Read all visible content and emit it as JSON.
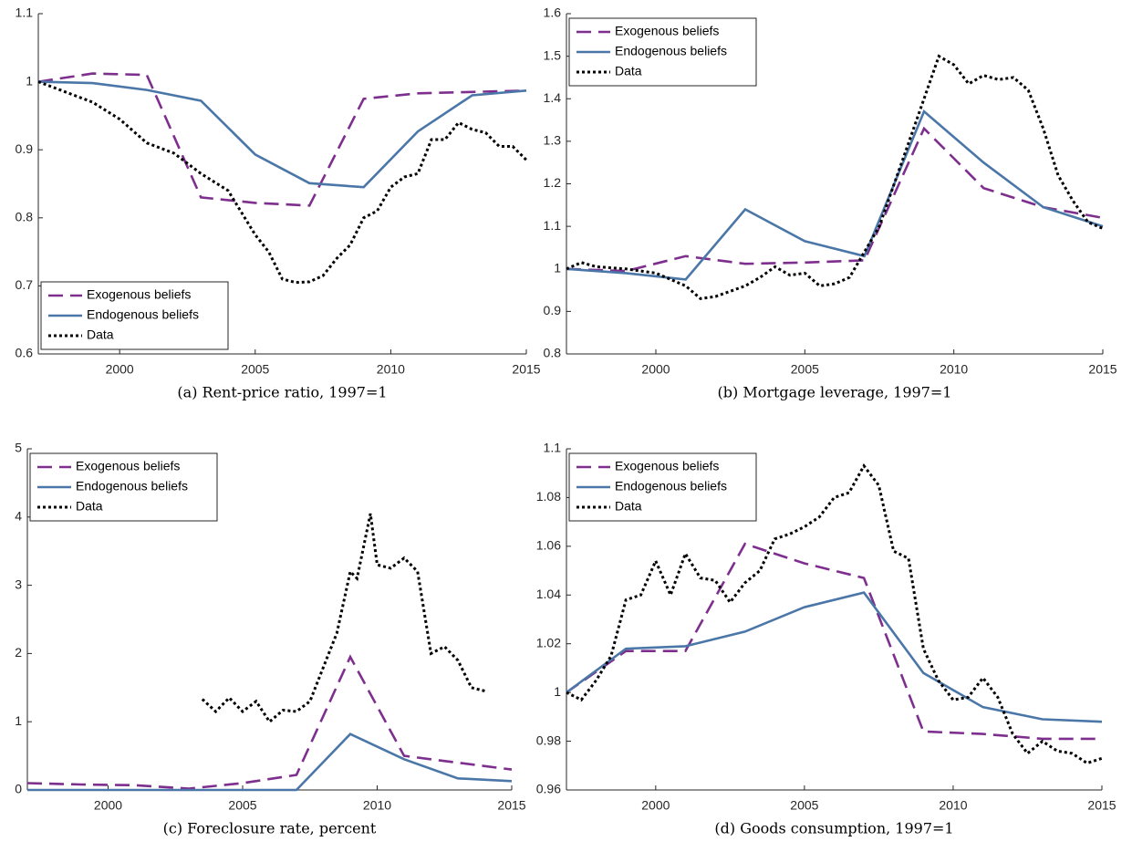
{
  "chart_data": [
    {
      "type": "line",
      "caption": "(a) Rent-price ratio, 1997=1",
      "xlim": [
        1997,
        2015
      ],
      "xticks": [
        2000,
        2005,
        2010,
        2015
      ],
      "ylim": [
        0.6,
        1.1
      ],
      "yticks": [
        0.6,
        0.7,
        0.8,
        0.9,
        1,
        1.1
      ],
      "legend": "lower left",
      "series": [
        {
          "name": "Exogenous beliefs",
          "color": "#7e2f8e",
          "style": "dashed",
          "x": [
            1997,
            1999,
            2001,
            2003,
            2005,
            2007,
            2009,
            2011,
            2013,
            2015
          ],
          "values": [
            1.0,
            1.012,
            1.01,
            0.83,
            0.822,
            0.818,
            0.975,
            0.983,
            0.985,
            0.987
          ]
        },
        {
          "name": "Endogenous beliefs",
          "color": "#4a76a8",
          "style": "solid",
          "x": [
            1997,
            1999,
            2001,
            2003,
            2005,
            2007,
            2009,
            2011,
            2013,
            2015
          ],
          "values": [
            1.0,
            0.998,
            0.988,
            0.972,
            0.893,
            0.851,
            0.845,
            0.927,
            0.98,
            0.987
          ]
        },
        {
          "name": "Data",
          "color": "#000000",
          "style": "dotted",
          "x": [
            1997,
            1998,
            1999,
            2000,
            2001,
            2002,
            2003,
            2004,
            2005,
            2005.5,
            2006,
            2006.5,
            2007,
            2007.5,
            2008,
            2008.5,
            2009,
            2009.5,
            2010,
            2010.5,
            2011,
            2011.5,
            2012,
            2012.5,
            2013,
            2013.5,
            2014,
            2014.5,
            2015
          ],
          "values": [
            1.0,
            0.985,
            0.97,
            0.945,
            0.91,
            0.895,
            0.865,
            0.84,
            0.775,
            0.75,
            0.71,
            0.705,
            0.706,
            0.715,
            0.74,
            0.76,
            0.8,
            0.81,
            0.845,
            0.86,
            0.865,
            0.915,
            0.915,
            0.94,
            0.93,
            0.925,
            0.905,
            0.905,
            0.885
          ]
        }
      ]
    },
    {
      "type": "line",
      "caption": "(b) Mortgage leverage, 1997=1",
      "xlim": [
        1997,
        2015
      ],
      "xticks": [
        2000,
        2005,
        2010,
        2015
      ],
      "ylim": [
        0.8,
        1.6
      ],
      "yticks": [
        0.8,
        0.9,
        1,
        1.1,
        1.2,
        1.3,
        1.4,
        1.5,
        1.6
      ],
      "legend": "upper left",
      "series": [
        {
          "name": "Exogenous beliefs",
          "color": "#7e2f8e",
          "style": "dashed",
          "x": [
            1997,
            1999,
            2001,
            2003,
            2005,
            2007,
            2009,
            2011,
            2013,
            2015
          ],
          "values": [
            1.0,
            0.995,
            1.03,
            1.012,
            1.015,
            1.02,
            1.33,
            1.19,
            1.145,
            1.12
          ]
        },
        {
          "name": "Endogenous beliefs",
          "color": "#4a76a8",
          "style": "solid",
          "x": [
            1997,
            1999,
            2001,
            2003,
            2005,
            2007,
            2009,
            2011,
            2013,
            2015
          ],
          "values": [
            1.0,
            0.99,
            0.975,
            1.14,
            1.065,
            1.03,
            1.37,
            1.25,
            1.145,
            1.1
          ]
        },
        {
          "name": "Data",
          "color": "#000000",
          "style": "dotted",
          "x": [
            1997,
            1997.5,
            1998,
            1999,
            2000,
            2001,
            2001.5,
            2002,
            2003,
            2003.5,
            2004,
            2004.5,
            2005,
            2005.5,
            2006,
            2006.5,
            2007,
            2007.5,
            2008,
            2008.5,
            2009,
            2009.5,
            2010,
            2010.5,
            2011,
            2011.5,
            2012,
            2012.5,
            2013,
            2013.5,
            2014,
            2014.5,
            2015
          ],
          "values": [
            1.0,
            1.015,
            1.005,
            1.0,
            0.99,
            0.96,
            0.93,
            0.935,
            0.96,
            0.98,
            1.005,
            0.985,
            0.99,
            0.96,
            0.965,
            0.98,
            1.04,
            1.1,
            1.2,
            1.3,
            1.4,
            1.5,
            1.48,
            1.435,
            1.455,
            1.445,
            1.45,
            1.42,
            1.33,
            1.22,
            1.16,
            1.11,
            1.095
          ]
        }
      ]
    },
    {
      "type": "line",
      "caption": "(c) Foreclosure rate, percent",
      "xlim": [
        1997,
        2015
      ],
      "xticks": [
        2000,
        2005,
        2010,
        2015
      ],
      "ylim": [
        0,
        5
      ],
      "yticks": [
        0,
        1,
        2,
        3,
        4,
        5
      ],
      "legend": "upper left",
      "series": [
        {
          "name": "Exogenous beliefs",
          "color": "#7e2f8e",
          "style": "dashed",
          "x": [
            1997,
            1999,
            2001,
            2003,
            2005,
            2007,
            2009,
            2011,
            2013,
            2015
          ],
          "values": [
            0.1,
            0.08,
            0.07,
            0.02,
            0.1,
            0.22,
            1.95,
            0.5,
            0.4,
            0.3
          ]
        },
        {
          "name": "Endogenous beliefs",
          "color": "#4a76a8",
          "style": "solid",
          "x": [
            1997,
            1999,
            2001,
            2003,
            2005,
            2007,
            2009,
            2011,
            2013,
            2015
          ],
          "values": [
            0,
            0,
            0,
            0,
            0,
            0,
            0.82,
            0.45,
            0.17,
            0.13
          ]
        },
        {
          "name": "Data",
          "color": "#000000",
          "style": "dotted",
          "x": [
            2003.5,
            2004,
            2004.5,
            2005,
            2005.5,
            2006,
            2006.5,
            2007,
            2007.5,
            2008,
            2008.5,
            2009,
            2009.25,
            2009.75,
            2010,
            2010.5,
            2011,
            2011.5,
            2012,
            2012.5,
            2013,
            2013.5,
            2014
          ],
          "values": [
            1.33,
            1.15,
            1.35,
            1.15,
            1.3,
            1.0,
            1.17,
            1.15,
            1.3,
            1.8,
            2.3,
            3.2,
            3.1,
            4.05,
            3.3,
            3.25,
            3.4,
            3.2,
            2.0,
            2.1,
            1.9,
            1.5,
            1.45
          ]
        }
      ]
    },
    {
      "type": "line",
      "caption": "(d) Goods consumption, 1997=1",
      "xlim": [
        1997,
        2015
      ],
      "xticks": [
        2000,
        2005,
        2010,
        2015
      ],
      "ylim": [
        0.96,
        1.1
      ],
      "yticks": [
        0.96,
        0.98,
        1,
        1.02,
        1.04,
        1.06,
        1.08,
        1.1
      ],
      "legend": "upper left",
      "series": [
        {
          "name": "Exogenous beliefs",
          "color": "#7e2f8e",
          "style": "dashed",
          "x": [
            1997,
            1999,
            2001,
            2003,
            2005,
            2007,
            2009,
            2011,
            2013,
            2015
          ],
          "values": [
            1.0,
            1.017,
            1.017,
            1.061,
            1.053,
            1.047,
            0.984,
            0.983,
            0.981,
            0.981
          ]
        },
        {
          "name": "Endogenous beliefs",
          "color": "#4a76a8",
          "style": "solid",
          "x": [
            1997,
            1999,
            2001,
            2003,
            2005,
            2007,
            2009,
            2011,
            2013,
            2015
          ],
          "values": [
            1.0,
            1.018,
            1.019,
            1.025,
            1.035,
            1.041,
            1.008,
            0.994,
            0.989,
            0.988
          ]
        },
        {
          "name": "Data",
          "color": "#000000",
          "style": "dotted",
          "x": [
            1997,
            1997.5,
            1998,
            1998.5,
            1999,
            1999.5,
            2000,
            2000.5,
            2001,
            2001.5,
            2002,
            2002.5,
            2003,
            2003.5,
            2004,
            2004.5,
            2005,
            2005.5,
            2006,
            2006.5,
            2007,
            2007.5,
            2008,
            2008.5,
            2009,
            2009.5,
            2010,
            2010.5,
            2011,
            2011.5,
            2012,
            2012.5,
            2013,
            2013.5,
            2014,
            2014.5,
            2015
          ],
          "values": [
            1.0,
            0.997,
            1.005,
            1.015,
            1.038,
            1.04,
            1.054,
            1.04,
            1.057,
            1.047,
            1.046,
            1.037,
            1.045,
            1.05,
            1.063,
            1.065,
            1.068,
            1.072,
            1.08,
            1.082,
            1.093,
            1.085,
            1.058,
            1.055,
            1.018,
            1.005,
            0.997,
            0.998,
            1.006,
            0.998,
            0.983,
            0.975,
            0.98,
            0.976,
            0.975,
            0.971,
            0.973
          ]
        }
      ]
    }
  ]
}
